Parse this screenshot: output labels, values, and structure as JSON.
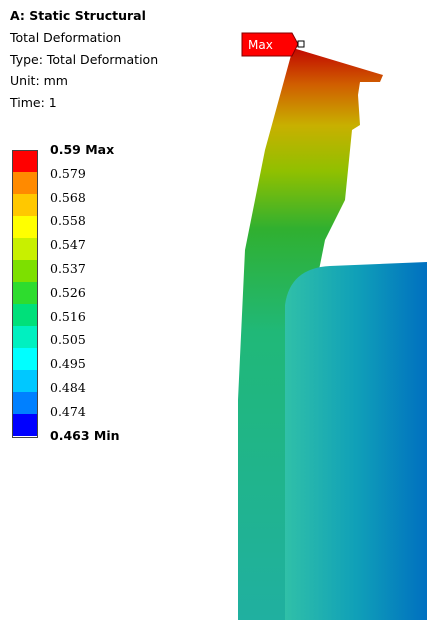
{
  "header": {
    "title": "A: Static Structural",
    "lines": [
      "Total Deformation",
      "Type: Total Deformation",
      "Unit: mm",
      "Time: 1"
    ]
  },
  "legend": {
    "labels": [
      "0.59 Max",
      "0.579",
      "0.568",
      "0.558",
      "0.547",
      "0.537",
      "0.526",
      "0.516",
      "0.505",
      "0.495",
      "0.484",
      "0.474",
      "0.463 Min"
    ],
    "colors": [
      "#ff0000",
      "#ff8a00",
      "#ffc800",
      "#ffff00",
      "#c8f000",
      "#7de000",
      "#2edc2e",
      "#00e07a",
      "#00f0c0",
      "#00ffff",
      "#00c8ff",
      "#0080ff",
      "#0000ff"
    ]
  },
  "max_tag": "Max"
}
